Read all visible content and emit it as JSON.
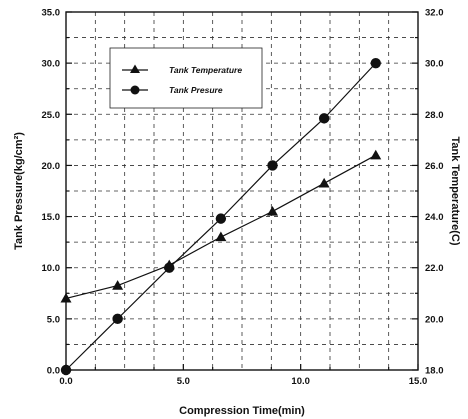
{
  "chart_data": {
    "type": "line",
    "xlabel": "Compression Time(min)",
    "ylabel": "Tank Pressure(kg/cm²)",
    "y2label": "Tank Temperature(C)",
    "xlim": [
      0,
      15
    ],
    "ylim": [
      0,
      35
    ],
    "y2lim": [
      18,
      32
    ],
    "x_ticks": [
      "0.0",
      "5.0",
      "10.0",
      "15.0"
    ],
    "y_ticks": [
      "0.0",
      "5.0",
      "10.0",
      "15.0",
      "20.0",
      "25.0",
      "30.0",
      "35.0"
    ],
    "y2_ticks": [
      "18.0",
      "20.0",
      "22.0",
      "24.0",
      "26.0",
      "28.0",
      "30.0",
      "32.0"
    ],
    "grid": true,
    "legend_position": "top-left",
    "series": [
      {
        "name": "Tank Temperature",
        "marker": "triangle",
        "axis": "right",
        "x": [
          0.0,
          2.2,
          4.4,
          6.6,
          8.8,
          11.0,
          13.2
        ],
        "y": [
          20.8,
          21.3,
          22.1,
          23.2,
          24.2,
          25.3,
          26.4
        ]
      },
      {
        "name": "Tank Presure",
        "marker": "circle",
        "axis": "left",
        "x": [
          0.0,
          2.2,
          4.4,
          6.6,
          8.8,
          11.0,
          13.2
        ],
        "y": [
          0.0,
          5.0,
          10.0,
          14.8,
          20.0,
          24.6,
          30.0
        ]
      }
    ]
  }
}
